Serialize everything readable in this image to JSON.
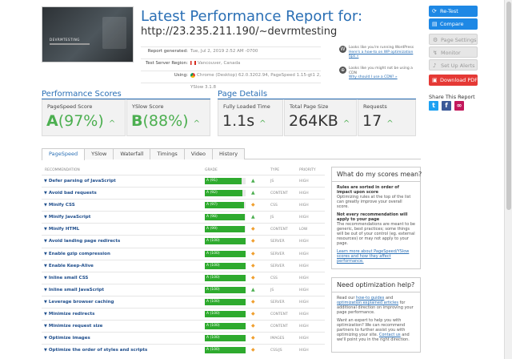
{
  "header": {
    "title": "Latest Performance Report for:",
    "url": "http://23.235.211.190/~devrmtesting",
    "thumbnail_title": "DEVRMTESTING"
  },
  "meta": {
    "generated_label": "Report generated:",
    "generated_value": "Tue, Jul 2, 2019 2:52 AM -0700",
    "region_label": "Test Server Region:",
    "region_value": "Vancouver, Canada",
    "using_label": "Using:",
    "using_value_1": "Chrome (Desktop) 62.0.3202.94, PageSpeed 1.15-gt1 2,",
    "using_value_2": "YSlow 3.1.8"
  },
  "promos": [
    {
      "icon": "W",
      "text": "Looks like you're running WordPress",
      "link": "Here's a how-to on WP optimization tips »"
    },
    {
      "icon": "⊕",
      "text": "Looks like you might not be using a CDN",
      "link": "Why should I use a CDN? »"
    }
  ],
  "buttons": {
    "retest": "Re-Test",
    "compare": "Compare",
    "page_settings": "Page Settings",
    "monitor": "Monitor",
    "setup_alerts": "Set Up Alerts",
    "download_pdf": "Download PDF"
  },
  "share": {
    "label": "Share This Report",
    "twitter": "t",
    "facebook": "f",
    "link": "∞"
  },
  "scores": {
    "title": "Performance Scores",
    "pagespeed_label": "PageSpeed Score",
    "pagespeed_grade": "A",
    "pagespeed_pct": "(97%)",
    "yslow_label": "YSlow Score",
    "yslow_grade": "B",
    "yslow_pct": "(88%)"
  },
  "details": {
    "title": "Page Details",
    "load_label": "Fully Loaded Time",
    "load_value": "1.1s",
    "size_label": "Total Page Size",
    "size_value": "264KB",
    "requests_label": "Requests",
    "requests_value": "17"
  },
  "arrow": "^",
  "tabs": [
    "PageSpeed",
    "YSlow",
    "Waterfall",
    "Timings",
    "Video",
    "History"
  ],
  "table": {
    "headers": {
      "recommendation": "RECOMMENDATION",
      "grade": "GRADE",
      "type": "TYPE",
      "priority": "PRIORITY"
    },
    "rows": [
      {
        "name": "Defer parsing of JavaScript",
        "grade": "A (91)",
        "score": 91,
        "ind": "up",
        "type": "JS",
        "priority": "HIGH"
      },
      {
        "name": "Avoid bad requests",
        "grade": "A (92)",
        "score": 92,
        "ind": "up",
        "type": "CONTENT",
        "priority": "HIGH"
      },
      {
        "name": "Minify CSS",
        "grade": "A (97)",
        "score": 97,
        "ind": "diamond",
        "type": "CSS",
        "priority": "HIGH"
      },
      {
        "name": "Minify JavaScript",
        "grade": "A (98)",
        "score": 98,
        "ind": "up",
        "type": "JS",
        "priority": "HIGH"
      },
      {
        "name": "Minify HTML",
        "grade": "A (99)",
        "score": 99,
        "ind": "diamond",
        "type": "CONTENT",
        "priority": "LOW"
      },
      {
        "name": "Avoid landing page redirects",
        "grade": "A (100)",
        "score": 100,
        "ind": "diamond",
        "type": "SERVER",
        "priority": "HIGH"
      },
      {
        "name": "Enable gzip compression",
        "grade": "A (100)",
        "score": 100,
        "ind": "diamond",
        "type": "SERVER",
        "priority": "HIGH"
      },
      {
        "name": "Enable Keep-Alive",
        "grade": "A (100)",
        "score": 100,
        "ind": "diamond",
        "type": "SERVER",
        "priority": "HIGH"
      },
      {
        "name": "Inline small CSS",
        "grade": "A (100)",
        "score": 100,
        "ind": "diamond",
        "type": "CSS",
        "priority": "HIGH"
      },
      {
        "name": "Inline small JavaScript",
        "grade": "A (100)",
        "score": 100,
        "ind": "up",
        "type": "JS",
        "priority": "HIGH"
      },
      {
        "name": "Leverage browser caching",
        "grade": "A (100)",
        "score": 100,
        "ind": "diamond",
        "type": "SERVER",
        "priority": "HIGH"
      },
      {
        "name": "Minimize redirects",
        "grade": "A (100)",
        "score": 100,
        "ind": "diamond",
        "type": "CONTENT",
        "priority": "HIGH"
      },
      {
        "name": "Minimize request size",
        "grade": "A (100)",
        "score": 100,
        "ind": "diamond",
        "type": "CONTENT",
        "priority": "HIGH"
      },
      {
        "name": "Optimize images",
        "grade": "A (100)",
        "score": 100,
        "ind": "diamond",
        "type": "IMAGES",
        "priority": "HIGH"
      },
      {
        "name": "Optimize the order of styles and scripts",
        "grade": "A (100)",
        "score": 100,
        "ind": "diamond",
        "type": "CSS/JS",
        "priority": "HIGH"
      }
    ]
  },
  "panel1": {
    "title": "What do my scores mean?",
    "p1_bold": "Rules are sorted in order of impact upon score",
    "p1": "Optimizing rules at the top of the list can greatly improve your overall score.",
    "p2_bold": "Not every recommendation will apply to your page",
    "p2": "The recommendations are meant to be generic, best practices; some things will be out of your control (eg. external resources) or may not apply to your page.",
    "p3_link": "Learn more about PageSpeed/YSlow scores and how they affect performance."
  },
  "panel2": {
    "title": "Need optimization help?",
    "p1_a": "Read our",
    "p1_link1": "how-to guides",
    "p1_b": "and",
    "p1_link2": "optimization explained articles",
    "p1_c": "for additional direction on improving your page performance.",
    "p2_a": "Want an expert to help you with optimization? We can recommend partners to further assist you with optimizing your site.",
    "p2_link": "Contact us",
    "p2_b": "and we'll point you in the right direction."
  },
  "colors": {
    "accent": "#2a6fb5",
    "grade_green": "#2eaa2e",
    "up_green": "#4caf50",
    "diamond_orange": "#f0a030",
    "pdf_red": "#e53935"
  }
}
